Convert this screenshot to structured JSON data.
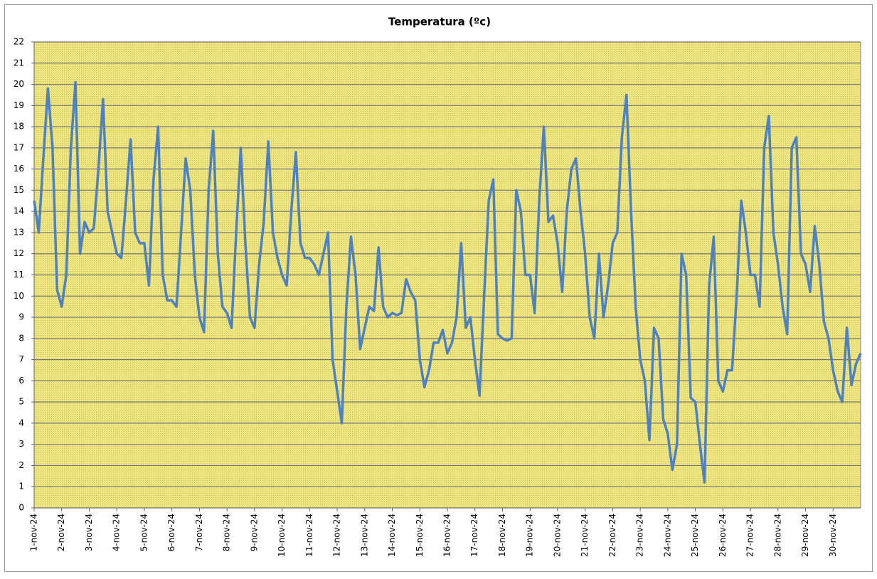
{
  "chart_data": {
    "type": "line",
    "title": "Temperatura (ºc)",
    "categories": [
      "1-nov-24",
      null,
      null,
      null,
      null,
      null,
      "2-nov-24",
      null,
      null,
      null,
      null,
      null,
      "3-nov-24",
      null,
      null,
      null,
      null,
      null,
      "4-nov-24",
      null,
      null,
      null,
      null,
      null,
      "5-nov-24",
      null,
      null,
      null,
      null,
      null,
      "6-nov-24",
      null,
      null,
      null,
      null,
      null,
      "7-nov-24",
      null,
      null,
      null,
      null,
      null,
      "8-nov-24",
      null,
      null,
      null,
      null,
      null,
      "9-nov-24",
      null,
      null,
      null,
      null,
      null,
      "10-nov-24",
      null,
      null,
      null,
      null,
      null,
      "11-nov-24",
      null,
      null,
      null,
      null,
      null,
      "12-nov-24",
      null,
      null,
      null,
      null,
      null,
      "13-nov-24",
      null,
      null,
      null,
      null,
      null,
      "14-nov-24",
      null,
      null,
      null,
      null,
      null,
      "15-nov-24",
      null,
      null,
      null,
      null,
      null,
      "16-nov-24",
      null,
      null,
      null,
      null,
      null,
      "17-nov-24",
      null,
      null,
      null,
      null,
      null,
      "18-nov-24",
      null,
      null,
      null,
      null,
      null,
      "19-nov-24",
      null,
      null,
      null,
      null,
      null,
      "20-nov-24",
      null,
      null,
      null,
      null,
      null,
      "21-nov-24",
      null,
      null,
      null,
      null,
      null,
      "22-nov-24",
      null,
      null,
      null,
      null,
      null,
      "23-nov-24",
      null,
      null,
      null,
      null,
      null,
      "24-nov-24",
      null,
      null,
      null,
      null,
      null,
      "25-nov-24",
      null,
      null,
      null,
      null,
      null,
      "26-nov-24",
      null,
      null,
      null,
      null,
      null,
      "27-nov-24",
      null,
      null,
      null,
      null,
      null,
      "28-nov-24",
      null,
      null,
      null,
      null,
      null,
      "29-nov-24",
      null,
      null,
      null,
      null,
      null,
      "30-nov-24",
      null,
      null,
      null,
      null,
      null,
      null
    ],
    "series": [
      {
        "color": "#4f81bd",
        "values": [
          14.5,
          13,
          16.5,
          19.8,
          17,
          10.3,
          9.5,
          11,
          17,
          20.1,
          12,
          13.5,
          13,
          13.2,
          16,
          19.3,
          14,
          13,
          12,
          11.8,
          14.5,
          17.4,
          13,
          12.5,
          12.5,
          10.5,
          15.5,
          18,
          11,
          9.8,
          9.8,
          9.5,
          13,
          16.5,
          15,
          11,
          9,
          8.3,
          15,
          17.8,
          12,
          9.5,
          9.2,
          8.5,
          13,
          17,
          12.5,
          9,
          8.5,
          11.5,
          13.5,
          17.3,
          13,
          11.8,
          11,
          10.5,
          14,
          16.8,
          12.5,
          11.8,
          11.8,
          11.5,
          11,
          12,
          13,
          7,
          5.5,
          4,
          9.5,
          12.8,
          11,
          7.5,
          8.5,
          9.5,
          9.3,
          12.3,
          9.5,
          9,
          9.2,
          9.1,
          9.2,
          10.8,
          10.2,
          9.8,
          7,
          5.7,
          6.5,
          7.8,
          7.8,
          8.4,
          7.3,
          7.8,
          9,
          12.5,
          8.5,
          9,
          7,
          5.3,
          10,
          14.5,
          15.5,
          8.2,
          8,
          7.9,
          8,
          15,
          14,
          11,
          11,
          9.2,
          14.5,
          18,
          13.5,
          13.8,
          12.5,
          10.2,
          14,
          16,
          16.5,
          14,
          12,
          9,
          8,
          12,
          9,
          10.5,
          12.5,
          13,
          17.5,
          19.5,
          14,
          9.5,
          7,
          6,
          3.2,
          8.5,
          8,
          4.2,
          3.5,
          1.8,
          3,
          12,
          11,
          5.2,
          5,
          3,
          1.2,
          10.5,
          12.8,
          6,
          5.5,
          6.5,
          6.5,
          10,
          14.5,
          13,
          11,
          11,
          9.5,
          17,
          18.5,
          13,
          11.5,
          9.5,
          8.2,
          17,
          17.5,
          12,
          11.5,
          10.2,
          13.3,
          11.5,
          8.8,
          8,
          6.5,
          5.5,
          5,
          8.5,
          5.8,
          6.8,
          7.3
        ]
      }
    ],
    "ylim": [
      0,
      22
    ],
    "yticks": [
      0,
      1,
      2,
      3,
      4,
      5,
      6,
      7,
      8,
      9,
      10,
      11,
      12,
      13,
      14,
      15,
      16,
      17,
      18,
      19,
      20,
      21,
      22
    ],
    "grid": true
  }
}
